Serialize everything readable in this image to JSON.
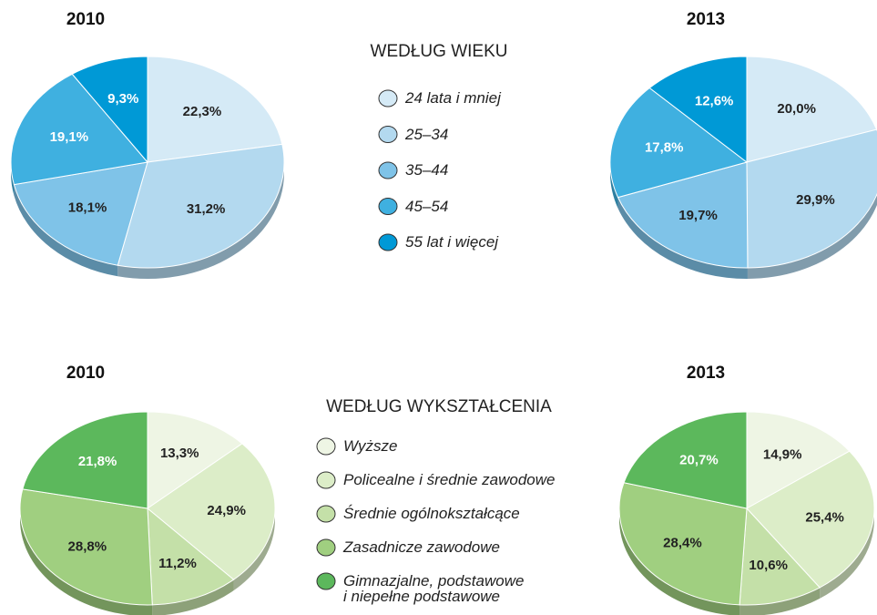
{
  "chart_data": [
    {
      "type": "pie",
      "title": "WEDŁUG WIEKU",
      "categories": [
        "24 lata i mniej",
        "25–34",
        "35–44",
        "45–54",
        "55 lat i więcej"
      ],
      "colors": [
        "#d5eaf6",
        "#b3d9ef",
        "#7fc3e8",
        "#3fb0e0",
        "#0099d6"
      ],
      "series": [
        {
          "name": "2010",
          "values": [
            22.3,
            31.2,
            18.1,
            19.1,
            9.3
          ],
          "value_labels": [
            "22,3%",
            "31,2%",
            "18,1%",
            "19,1%",
            "9,3%"
          ]
        },
        {
          "name": "2013",
          "values": [
            20.0,
            29.9,
            19.7,
            17.8,
            12.6
          ],
          "value_labels": [
            "20,0%",
            "29,9%",
            "19,7%",
            "17,8%",
            "12,6%"
          ]
        }
      ]
    },
    {
      "type": "pie",
      "title": "WEDŁUG WYKSZTAŁCENIA",
      "categories": [
        "Wyższe",
        "Policealne i średnie zawodowe",
        "Średnie ogólnokształcące",
        "Zasadnicze zawodowe",
        "Gimnazjalne, podstawowe\ni niepełne podstawowe"
      ],
      "colors": [
        "#eef5e4",
        "#dcedc8",
        "#c4e0a8",
        "#a0cf80",
        "#5cb85c"
      ],
      "series": [
        {
          "name": "2010",
          "values": [
            13.3,
            24.9,
            11.2,
            28.8,
            21.8
          ],
          "value_labels": [
            "13,3%",
            "24,9%",
            "11,2%",
            "28,8%",
            "21,8%"
          ]
        },
        {
          "name": "2013",
          "values": [
            14.9,
            25.4,
            10.6,
            28.4,
            20.7
          ],
          "value_labels": [
            "14,9%",
            "25,4%",
            "10,6%",
            "28,4%",
            "20,7%"
          ]
        }
      ]
    }
  ]
}
